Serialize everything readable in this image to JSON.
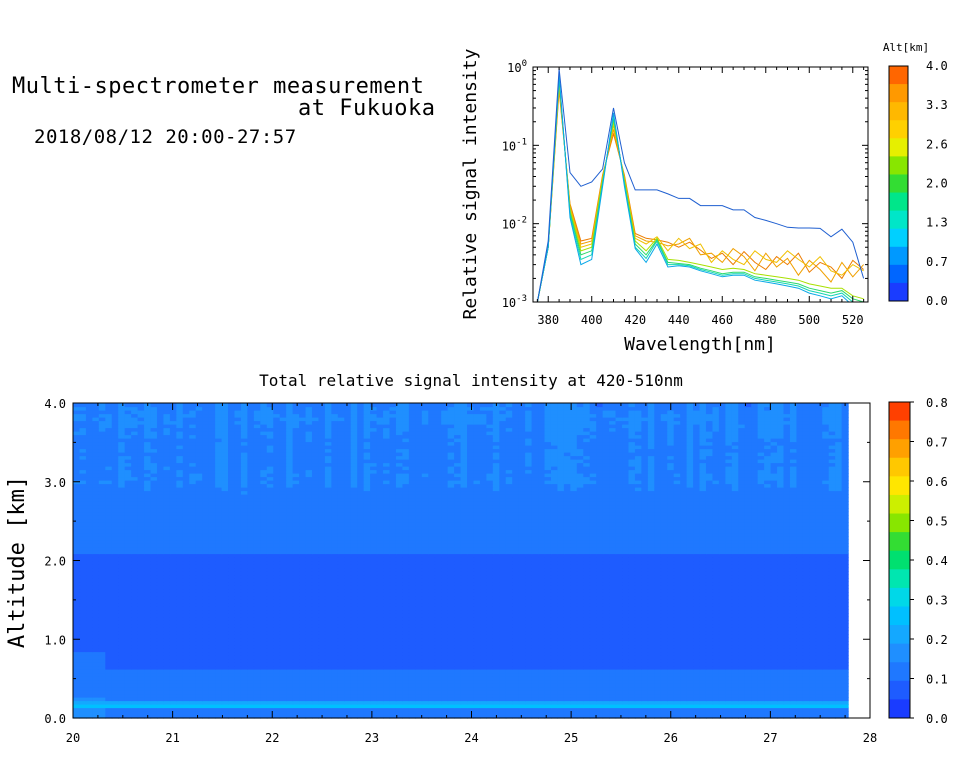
{
  "header": {
    "title_line1": "Multi-spectrometer measurement",
    "title_line2": "at Fukuoka",
    "datetime": "2018/08/12 20:00-27:57"
  },
  "chart_data": [
    {
      "type": "line",
      "title": "",
      "xlabel": "Wavelength[nm]",
      "ylabel": "Relative signal intensity",
      "xlim": [
        373,
        527
      ],
      "ylim_log10": [
        -3,
        0
      ],
      "yscale": "log",
      "x_ticks": [
        380,
        400,
        420,
        440,
        460,
        480,
        500,
        520
      ],
      "y_ticks": [
        {
          "base": "10",
          "exp": "0"
        },
        {
          "base": "10",
          "exp": "-1"
        },
        {
          "base": "10",
          "exp": "-2"
        },
        {
          "base": "10",
          "exp": "-3"
        }
      ],
      "x": [
        375,
        380,
        385,
        390,
        395,
        400,
        405,
        410,
        415,
        420,
        425,
        430,
        435,
        440,
        445,
        450,
        455,
        460,
        465,
        470,
        475,
        480,
        485,
        490,
        495,
        500,
        505,
        510,
        515,
        520,
        525
      ],
      "colorbar": {
        "label": "Alt[km]",
        "ticks": [
          "4.0",
          "3.3",
          "2.6",
          "2.0",
          "1.3",
          "0.7",
          "0.0"
        ],
        "colors": [
          "#ff6600",
          "#ff9900",
          "#ffb800",
          "#ffd000",
          "#e6ef00",
          "#88e600",
          "#33dd33",
          "#00e68a",
          "#00e6c8",
          "#00d0ff",
          "#0099ff",
          "#0066ff",
          "#1a3cff"
        ]
      },
      "series": [
        {
          "color": "#1f5fd0",
          "values": [
            0.001,
            0.006,
            0.95,
            0.045,
            0.03,
            0.034,
            0.05,
            0.3,
            0.06,
            0.027,
            0.027,
            0.027,
            0.024,
            0.021,
            0.021,
            0.017,
            0.017,
            0.017,
            0.015,
            0.015,
            0.012,
            0.011,
            0.01,
            0.009,
            0.0088,
            0.0088,
            0.0087,
            0.0068,
            0.0085,
            0.0058,
            0.002
          ]
        },
        {
          "color": "#0aa8e8",
          "values": [
            0.001,
            0.005,
            0.8,
            0.012,
            0.003,
            0.0035,
            0.03,
            0.26,
            0.03,
            0.0048,
            0.0032,
            0.0055,
            0.0028,
            0.0029,
            0.0028,
            0.0025,
            0.0023,
            0.0021,
            0.0022,
            0.0022,
            0.0019,
            0.0018,
            0.0017,
            0.0016,
            0.0015,
            0.0013,
            0.0012,
            0.0011,
            0.0012,
            0.0009,
            0.0008
          ]
        },
        {
          "color": "#13d6b4",
          "values": [
            0.001,
            0.005,
            0.75,
            0.013,
            0.0035,
            0.004,
            0.032,
            0.24,
            0.032,
            0.005,
            0.0036,
            0.006,
            0.003,
            0.003,
            0.0029,
            0.0026,
            0.0024,
            0.0022,
            0.0023,
            0.0023,
            0.002,
            0.0019,
            0.0018,
            0.0017,
            0.0016,
            0.0014,
            0.0013,
            0.0012,
            0.0013,
            0.001,
            0.0009
          ]
        },
        {
          "color": "#2ad96a",
          "values": [
            0.001,
            0.005,
            0.7,
            0.014,
            0.004,
            0.0045,
            0.034,
            0.22,
            0.034,
            0.0055,
            0.004,
            0.0062,
            0.0032,
            0.0031,
            0.003,
            0.0027,
            0.0025,
            0.0023,
            0.0024,
            0.0024,
            0.0021,
            0.002,
            0.0019,
            0.0018,
            0.0017,
            0.0015,
            0.0014,
            0.0013,
            0.0014,
            0.0011,
            0.001
          ]
        },
        {
          "color": "#a8e000",
          "values": [
            0.001,
            0.005,
            0.65,
            0.015,
            0.0045,
            0.005,
            0.036,
            0.2,
            0.036,
            0.006,
            0.0045,
            0.0065,
            0.0035,
            0.0034,
            0.0032,
            0.003,
            0.0028,
            0.0026,
            0.0027,
            0.0026,
            0.0023,
            0.0022,
            0.0021,
            0.002,
            0.0019,
            0.0017,
            0.0016,
            0.0015,
            0.0015,
            0.0012,
            0.0011
          ]
        },
        {
          "color": "#f0c000",
          "values": [
            0.001,
            0.005,
            0.6,
            0.016,
            0.005,
            0.0055,
            0.038,
            0.18,
            0.038,
            0.0065,
            0.0055,
            0.0068,
            0.0045,
            0.0065,
            0.0048,
            0.0055,
            0.0032,
            0.0045,
            0.0035,
            0.003,
            0.0045,
            0.0035,
            0.0032,
            0.0045,
            0.0035,
            0.0028,
            0.0038,
            0.0025,
            0.0022,
            0.003,
            0.0025
          ]
        },
        {
          "color": "#f0a000",
          "values": [
            0.001,
            0.005,
            0.55,
            0.017,
            0.0055,
            0.006,
            0.04,
            0.16,
            0.04,
            0.007,
            0.006,
            0.0058,
            0.0052,
            0.0055,
            0.0065,
            0.004,
            0.0042,
            0.0032,
            0.0048,
            0.0038,
            0.0025,
            0.0042,
            0.0028,
            0.0036,
            0.0022,
            0.0034,
            0.0026,
            0.0018,
            0.0032,
            0.0021,
            0.003
          ]
        },
        {
          "color": "#ec7c00",
          "values": [
            0.001,
            0.005,
            0.5,
            0.018,
            0.006,
            0.0065,
            0.042,
            0.14,
            0.042,
            0.0075,
            0.0065,
            0.0062,
            0.0058,
            0.005,
            0.0058,
            0.0046,
            0.0036,
            0.0042,
            0.003,
            0.0044,
            0.0032,
            0.0026,
            0.0038,
            0.003,
            0.0042,
            0.0024,
            0.0032,
            0.0028,
            0.002,
            0.0034,
            0.0026
          ]
        }
      ]
    },
    {
      "type": "heatmap",
      "title": "Total relative signal intensity at 420-510nm",
      "xlabel": "",
      "ylabel": "Altitude [km]",
      "xlim": [
        20,
        28
      ],
      "ylim": [
        0,
        4
      ],
      "x_ticks": [
        "20",
        "21",
        "22",
        "23",
        "24",
        "25",
        "26",
        "27",
        "28"
      ],
      "y_ticks": [
        "0.0",
        "1.0",
        "2.0",
        "3.0",
        "4.0"
      ],
      "data_x_range": [
        20,
        27.78
      ],
      "colorbar": {
        "ticks": [
          "0.8",
          "0.7",
          "0.6",
          "0.5",
          "0.4",
          "0.3",
          "0.2",
          "0.1",
          "0.0"
        ],
        "range": [
          0,
          0.8
        ],
        "colors": [
          "#1a3cff",
          "#1e5cff",
          "#1f78ff",
          "#1f8fff",
          "#14a8ff",
          "#00c0ff",
          "#00d8e8",
          "#00e6b0",
          "#00e070",
          "#33dd33",
          "#88e600",
          "#ccef00",
          "#ffe600",
          "#ffc800",
          "#ffa000",
          "#ff7800",
          "#ff4000"
        ]
      },
      "profile_altitude_km": [
        0.0,
        0.12,
        0.17,
        0.22,
        0.28,
        0.4,
        1.0,
        1.8,
        2.5,
        3.0,
        3.5,
        3.85,
        4.0
      ],
      "profile_value": [
        0.13,
        0.13,
        0.29,
        0.14,
        0.12,
        0.1,
        0.085,
        0.09,
        0.1,
        0.14,
        0.13,
        0.15,
        0.13
      ]
    }
  ]
}
